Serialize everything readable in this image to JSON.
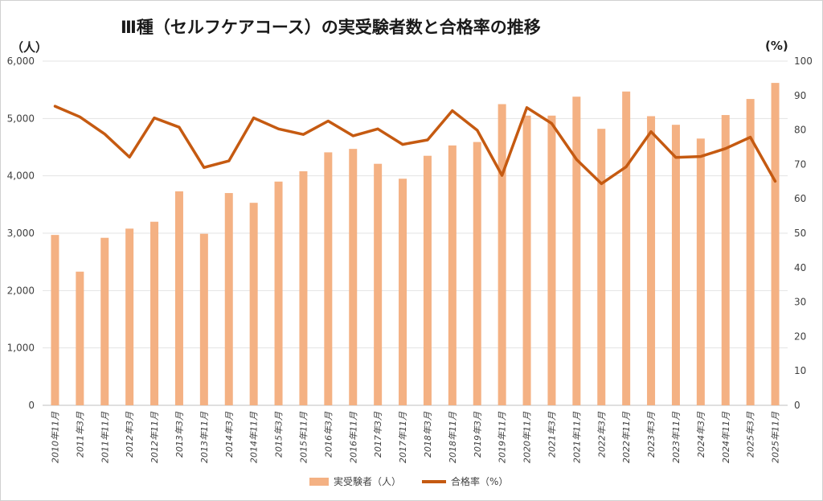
{
  "chart_data": {
    "type": "bar+line",
    "title": "Ⅲ種（セルフケアコース）の実受験者数と合格率の推移",
    "ylabel_left": "（人）",
    "ylabel_right": "(%)",
    "categories": [
      "2010年11月",
      "2011年3月",
      "2011年11月",
      "2012年3月",
      "2012年11月",
      "2013年3月",
      "2013年11月",
      "2014年3月",
      "2014年11月",
      "2015年3月",
      "2015年11月",
      "2016年3月",
      "2016年11月",
      "2017年3月",
      "2017年11月",
      "2018年3月",
      "2018年11月",
      "2019年3月",
      "2019年11月",
      "2020年11月",
      "2021年3月",
      "2021年11月",
      "2022年3月",
      "2022年11月",
      "2023年3月",
      "2023年11月",
      "2024年3月",
      "2024年11月",
      "2025年3月",
      "2025年11月"
    ],
    "ylim_left": [
      0,
      6000
    ],
    "yticks_left": [
      "0",
      "1,000",
      "2,000",
      "3,000",
      "4,000",
      "5,000",
      "6,000"
    ],
    "ylim_right": [
      0,
      100
    ],
    "yticks_right": [
      "0",
      "10",
      "20",
      "30",
      "40",
      "50",
      "60",
      "70",
      "80",
      "90",
      "100"
    ],
    "series": [
      {
        "name": "実受験者（人）",
        "type": "bar",
        "axis": "left",
        "color": "#f4b183",
        "values": [
          2970,
          2330,
          2920,
          3080,
          3200,
          3730,
          2990,
          3700,
          3530,
          3900,
          4080,
          4410,
          4470,
          4210,
          3950,
          4350,
          4530,
          4590,
          5250,
          5050,
          5050,
          5380,
          4820,
          5470,
          5040,
          4890,
          4650,
          5060,
          5340,
          5620
        ]
      },
      {
        "name": "合格率（%）",
        "type": "line",
        "axis": "right",
        "color": "#c55a11",
        "values": [
          86.9,
          83.8,
          78.8,
          72.1,
          83.5,
          80.8,
          69.1,
          71.0,
          83.5,
          80.3,
          78.7,
          82.6,
          78.3,
          80.3,
          75.8,
          77.1,
          85.6,
          79.9,
          66.8,
          86.5,
          81.9,
          71.4,
          64.4,
          69.3,
          79.5,
          72.0,
          72.3,
          74.6,
          77.9,
          65.1
        ]
      }
    ]
  }
}
